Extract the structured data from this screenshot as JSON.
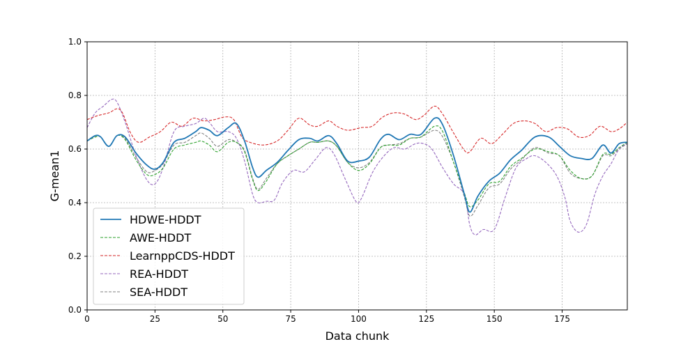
{
  "chart_data": {
    "type": "line",
    "title": "",
    "xlabel": "Data chunk",
    "ylabel": "G-mean1",
    "xlim": [
      0,
      199
    ],
    "ylim": [
      0.0,
      1.0
    ],
    "x_ticks": [
      0,
      25,
      50,
      75,
      100,
      125,
      150,
      175
    ],
    "y_ticks": [
      0.0,
      0.2,
      0.4,
      0.6,
      0.8,
      1.0
    ],
    "grid": true,
    "legend_position": "lower-left",
    "series": [
      {
        "name": "HDWE-HDDT",
        "color": "#1f77b4",
        "style": "solid",
        "points": [
          [
            0,
            0.63
          ],
          [
            3,
            0.65
          ],
          [
            5,
            0.645
          ],
          [
            8,
            0.61
          ],
          [
            11,
            0.65
          ],
          [
            14,
            0.645
          ],
          [
            18,
            0.585
          ],
          [
            22,
            0.54
          ],
          [
            25,
            0.525
          ],
          [
            28,
            0.55
          ],
          [
            32,
            0.625
          ],
          [
            36,
            0.64
          ],
          [
            40,
            0.665
          ],
          [
            42,
            0.68
          ],
          [
            45,
            0.67
          ],
          [
            48,
            0.65
          ],
          [
            52,
            0.68
          ],
          [
            55,
            0.695
          ],
          [
            58,
            0.63
          ],
          [
            61,
            0.53
          ],
          [
            63,
            0.495
          ],
          [
            66,
            0.52
          ],
          [
            70,
            0.55
          ],
          [
            74,
            0.595
          ],
          [
            78,
            0.635
          ],
          [
            82,
            0.64
          ],
          [
            85,
            0.63
          ],
          [
            89,
            0.65
          ],
          [
            92,
            0.62
          ],
          [
            96,
            0.555
          ],
          [
            100,
            0.555
          ],
          [
            104,
            0.57
          ],
          [
            108,
            0.635
          ],
          [
            111,
            0.655
          ],
          [
            115,
            0.635
          ],
          [
            119,
            0.655
          ],
          [
            123,
            0.655
          ],
          [
            128,
            0.715
          ],
          [
            131,
            0.69
          ],
          [
            135,
            0.575
          ],
          [
            139,
            0.43
          ],
          [
            141,
            0.365
          ],
          [
            144,
            0.425
          ],
          [
            148,
            0.48
          ],
          [
            152,
            0.51
          ],
          [
            156,
            0.56
          ],
          [
            160,
            0.595
          ],
          [
            165,
            0.645
          ],
          [
            170,
            0.645
          ],
          [
            174,
            0.61
          ],
          [
            178,
            0.575
          ],
          [
            182,
            0.565
          ],
          [
            186,
            0.565
          ],
          [
            190,
            0.615
          ],
          [
            193,
            0.585
          ],
          [
            196,
            0.62
          ],
          [
            199,
            0.625
          ]
        ]
      },
      {
        "name": "AWE-HDDT",
        "color": "#2ca02c",
        "style": "dashed",
        "points": [
          [
            0,
            0.63
          ],
          [
            3,
            0.645
          ],
          [
            5,
            0.645
          ],
          [
            8,
            0.61
          ],
          [
            11,
            0.65
          ],
          [
            14,
            0.635
          ],
          [
            18,
            0.56
          ],
          [
            22,
            0.505
          ],
          [
            25,
            0.505
          ],
          [
            28,
            0.53
          ],
          [
            32,
            0.6
          ],
          [
            36,
            0.615
          ],
          [
            40,
            0.625
          ],
          [
            42,
            0.63
          ],
          [
            45,
            0.615
          ],
          [
            48,
            0.59
          ],
          [
            52,
            0.625
          ],
          [
            55,
            0.625
          ],
          [
            58,
            0.59
          ],
          [
            61,
            0.485
          ],
          [
            63,
            0.445
          ],
          [
            66,
            0.48
          ],
          [
            70,
            0.545
          ],
          [
            74,
            0.575
          ],
          [
            78,
            0.6
          ],
          [
            82,
            0.625
          ],
          [
            85,
            0.625
          ],
          [
            89,
            0.63
          ],
          [
            92,
            0.61
          ],
          [
            96,
            0.55
          ],
          [
            100,
            0.52
          ],
          [
            104,
            0.545
          ],
          [
            108,
            0.605
          ],
          [
            111,
            0.615
          ],
          [
            115,
            0.615
          ],
          [
            119,
            0.64
          ],
          [
            123,
            0.645
          ],
          [
            128,
            0.685
          ],
          [
            131,
            0.665
          ],
          [
            135,
            0.55
          ],
          [
            139,
            0.435
          ],
          [
            141,
            0.385
          ],
          [
            144,
            0.41
          ],
          [
            148,
            0.47
          ],
          [
            152,
            0.48
          ],
          [
            156,
            0.535
          ],
          [
            160,
            0.565
          ],
          [
            165,
            0.6
          ],
          [
            170,
            0.59
          ],
          [
            174,
            0.575
          ],
          [
            178,
            0.52
          ],
          [
            182,
            0.49
          ],
          [
            186,
            0.5
          ],
          [
            190,
            0.58
          ],
          [
            193,
            0.58
          ],
          [
            196,
            0.605
          ],
          [
            199,
            0.625
          ]
        ]
      },
      {
        "name": "LearnppCDS-HDDT",
        "color": "#d62728",
        "style": "dashed",
        "points": [
          [
            0,
            0.71
          ],
          [
            4,
            0.725
          ],
          [
            8,
            0.735
          ],
          [
            11,
            0.75
          ],
          [
            13,
            0.735
          ],
          [
            16,
            0.66
          ],
          [
            19,
            0.625
          ],
          [
            23,
            0.645
          ],
          [
            27,
            0.665
          ],
          [
            31,
            0.7
          ],
          [
            35,
            0.685
          ],
          [
            39,
            0.715
          ],
          [
            43,
            0.705
          ],
          [
            47,
            0.71
          ],
          [
            51,
            0.72
          ],
          [
            54,
            0.71
          ],
          [
            57,
            0.645
          ],
          [
            60,
            0.625
          ],
          [
            65,
            0.615
          ],
          [
            70,
            0.63
          ],
          [
            74,
            0.67
          ],
          [
            78,
            0.715
          ],
          [
            82,
            0.69
          ],
          [
            85,
            0.685
          ],
          [
            89,
            0.705
          ],
          [
            92,
            0.685
          ],
          [
            96,
            0.67
          ],
          [
            101,
            0.68
          ],
          [
            105,
            0.685
          ],
          [
            109,
            0.72
          ],
          [
            113,
            0.735
          ],
          [
            117,
            0.73
          ],
          [
            121,
            0.71
          ],
          [
            124,
            0.725
          ],
          [
            128,
            0.76
          ],
          [
            131,
            0.73
          ],
          [
            135,
            0.66
          ],
          [
            139,
            0.595
          ],
          [
            141,
            0.59
          ],
          [
            145,
            0.64
          ],
          [
            149,
            0.62
          ],
          [
            153,
            0.655
          ],
          [
            157,
            0.695
          ],
          [
            161,
            0.705
          ],
          [
            165,
            0.695
          ],
          [
            169,
            0.665
          ],
          [
            173,
            0.68
          ],
          [
            177,
            0.675
          ],
          [
            181,
            0.645
          ],
          [
            185,
            0.65
          ],
          [
            189,
            0.685
          ],
          [
            193,
            0.665
          ],
          [
            196,
            0.675
          ],
          [
            199,
            0.7
          ]
        ]
      },
      {
        "name": "REA-HDDT",
        "color": "#9467bd",
        "style": "dashed",
        "points": [
          [
            0,
            0.68
          ],
          [
            3,
            0.735
          ],
          [
            6,
            0.76
          ],
          [
            9,
            0.785
          ],
          [
            11,
            0.775
          ],
          [
            14,
            0.7
          ],
          [
            18,
            0.575
          ],
          [
            22,
            0.485
          ],
          [
            25,
            0.47
          ],
          [
            28,
            0.53
          ],
          [
            32,
            0.665
          ],
          [
            36,
            0.685
          ],
          [
            40,
            0.695
          ],
          [
            43,
            0.715
          ],
          [
            45,
            0.7
          ],
          [
            48,
            0.665
          ],
          [
            52,
            0.665
          ],
          [
            55,
            0.64
          ],
          [
            58,
            0.555
          ],
          [
            61,
            0.43
          ],
          [
            63,
            0.4
          ],
          [
            66,
            0.405
          ],
          [
            69,
            0.41
          ],
          [
            72,
            0.475
          ],
          [
            76,
            0.52
          ],
          [
            80,
            0.515
          ],
          [
            84,
            0.56
          ],
          [
            88,
            0.605
          ],
          [
            91,
            0.58
          ],
          [
            95,
            0.49
          ],
          [
            99,
            0.405
          ],
          [
            101,
            0.415
          ],
          [
            105,
            0.51
          ],
          [
            109,
            0.57
          ],
          [
            113,
            0.605
          ],
          [
            117,
            0.6
          ],
          [
            121,
            0.62
          ],
          [
            124,
            0.62
          ],
          [
            127,
            0.6
          ],
          [
            131,
            0.53
          ],
          [
            135,
            0.47
          ],
          [
            139,
            0.43
          ],
          [
            141,
            0.315
          ],
          [
            143,
            0.28
          ],
          [
            146,
            0.3
          ],
          [
            150,
            0.3
          ],
          [
            154,
            0.42
          ],
          [
            158,
            0.53
          ],
          [
            162,
            0.565
          ],
          [
            165,
            0.575
          ],
          [
            169,
            0.55
          ],
          [
            173,
            0.5
          ],
          [
            176,
            0.42
          ],
          [
            178,
            0.33
          ],
          [
            181,
            0.29
          ],
          [
            184,
            0.32
          ],
          [
            187,
            0.43
          ],
          [
            190,
            0.5
          ],
          [
            193,
            0.545
          ],
          [
            196,
            0.6
          ],
          [
            199,
            0.62
          ]
        ]
      },
      {
        "name": "SEA-HDDT",
        "color": "#7f7f7f",
        "style": "dashed",
        "points": [
          [
            0,
            0.63
          ],
          [
            3,
            0.645
          ],
          [
            5,
            0.645
          ],
          [
            8,
            0.61
          ],
          [
            11,
            0.65
          ],
          [
            14,
            0.64
          ],
          [
            18,
            0.57
          ],
          [
            22,
            0.515
          ],
          [
            25,
            0.52
          ],
          [
            28,
            0.545
          ],
          [
            32,
            0.615
          ],
          [
            36,
            0.625
          ],
          [
            40,
            0.65
          ],
          [
            42,
            0.66
          ],
          [
            45,
            0.64
          ],
          [
            48,
            0.61
          ],
          [
            52,
            0.635
          ],
          [
            55,
            0.625
          ],
          [
            58,
            0.595
          ],
          [
            61,
            0.49
          ],
          [
            63,
            0.45
          ],
          [
            66,
            0.49
          ],
          [
            70,
            0.545
          ],
          [
            74,
            0.575
          ],
          [
            78,
            0.6
          ],
          [
            82,
            0.625
          ],
          [
            85,
            0.625
          ],
          [
            89,
            0.63
          ],
          [
            92,
            0.61
          ],
          [
            96,
            0.55
          ],
          [
            100,
            0.53
          ],
          [
            104,
            0.55
          ],
          [
            108,
            0.605
          ],
          [
            111,
            0.615
          ],
          [
            115,
            0.62
          ],
          [
            119,
            0.64
          ],
          [
            123,
            0.645
          ],
          [
            128,
            0.67
          ],
          [
            131,
            0.645
          ],
          [
            135,
            0.55
          ],
          [
            139,
            0.42
          ],
          [
            141,
            0.35
          ],
          [
            144,
            0.39
          ],
          [
            148,
            0.455
          ],
          [
            152,
            0.47
          ],
          [
            156,
            0.525
          ],
          [
            160,
            0.56
          ],
          [
            165,
            0.605
          ],
          [
            170,
            0.585
          ],
          [
            174,
            0.575
          ],
          [
            178,
            0.51
          ],
          [
            182,
            0.49
          ],
          [
            186,
            0.5
          ],
          [
            190,
            0.575
          ],
          [
            193,
            0.575
          ],
          [
            196,
            0.6
          ],
          [
            199,
            0.62
          ]
        ]
      }
    ]
  }
}
